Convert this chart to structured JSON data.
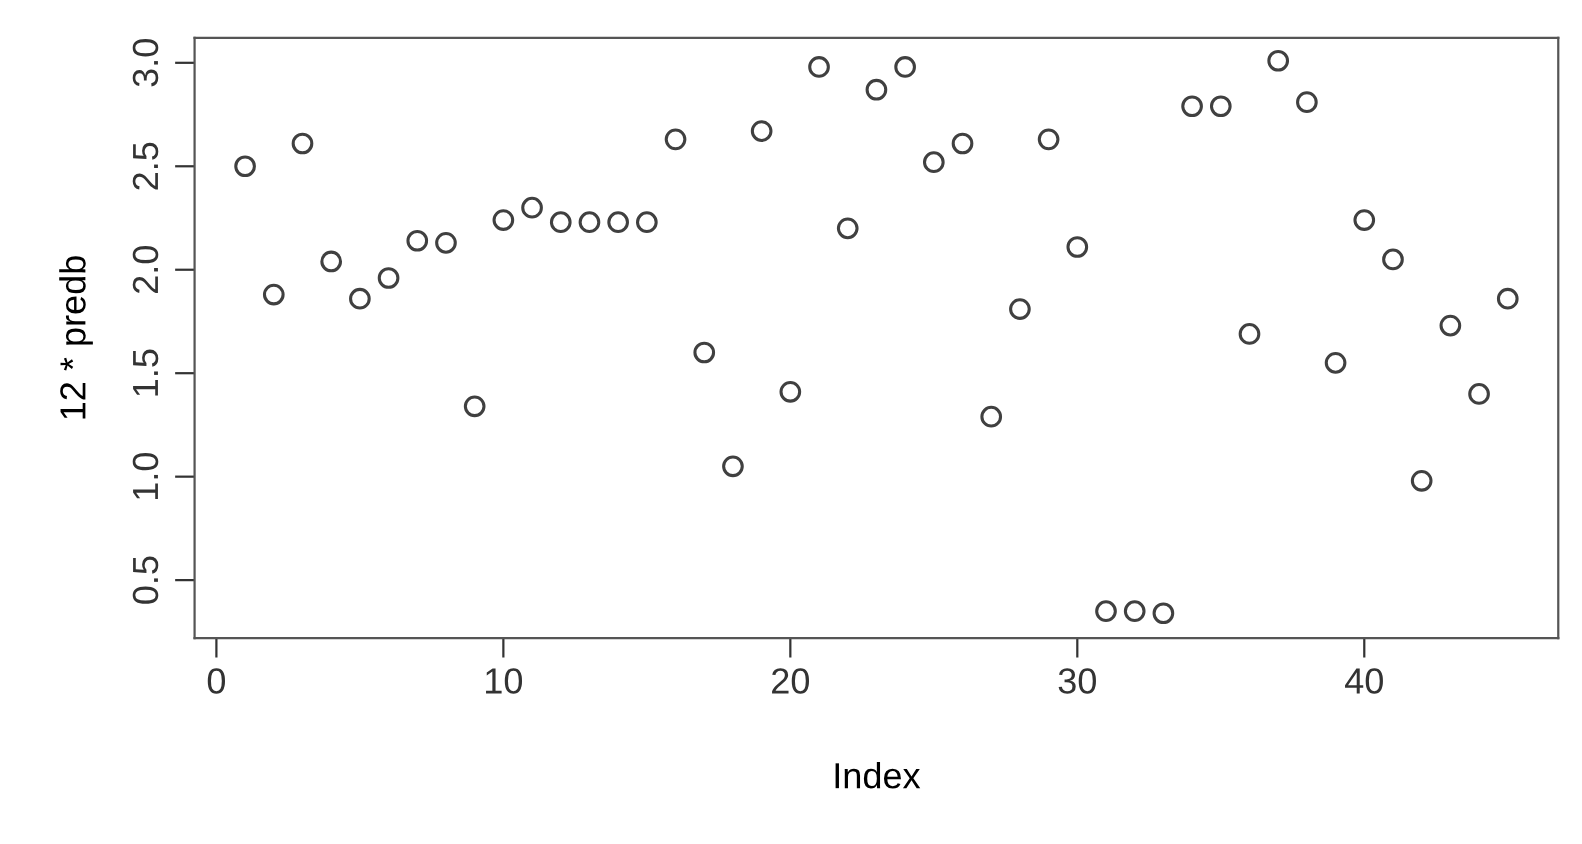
{
  "chart_data": {
    "type": "scatter",
    "xlabel": "Index",
    "ylabel": "12 * predb",
    "x": [
      1,
      2,
      3,
      4,
      5,
      6,
      7,
      8,
      9,
      10,
      11,
      12,
      13,
      14,
      15,
      16,
      17,
      18,
      19,
      20,
      21,
      22,
      23,
      24,
      25,
      26,
      27,
      28,
      29,
      30,
      31,
      32,
      33,
      34,
      35,
      36,
      37,
      38,
      39,
      40,
      41,
      42,
      43,
      44,
      45
    ],
    "values": [
      2.5,
      1.88,
      2.61,
      2.04,
      1.86,
      1.96,
      2.14,
      2.13,
      1.34,
      2.24,
      2.3,
      2.23,
      2.23,
      2.23,
      2.23,
      2.63,
      1.6,
      1.05,
      2.67,
      1.41,
      2.98,
      2.2,
      2.87,
      2.98,
      2.52,
      2.61,
      1.29,
      1.81,
      2.63,
      2.11,
      0.35,
      0.35,
      0.34,
      2.79,
      2.79,
      1.69,
      3.01,
      2.81,
      1.55,
      2.24,
      2.05,
      0.98,
      1.73,
      1.4,
      1.86
    ],
    "color": "#404040",
    "marker": "circle",
    "grid": false,
    "xlim": [
      -0.76,
      46.76
    ],
    "ylim": [
      0.22,
      3.12
    ],
    "xticks": [
      0,
      10,
      20,
      30,
      40
    ],
    "yticks": [
      0.5,
      {
        "value": 1,
        "label": "1.0"
      },
      1.5,
      {
        "value": 2,
        "label": "2.0"
      },
      2.5,
      {
        "value": 3,
        "label": "3.0"
      }
    ]
  }
}
